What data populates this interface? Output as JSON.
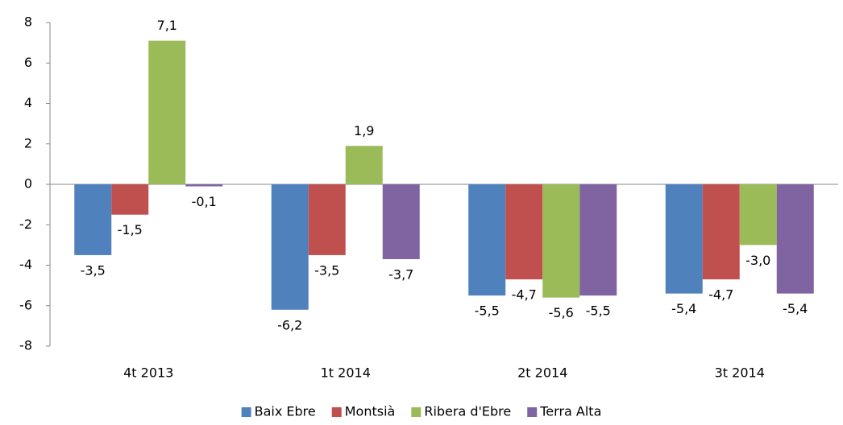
{
  "chart_data": {
    "type": "bar",
    "categories": [
      "4t 2013",
      "1t 2014",
      "2t 2014",
      "3t 2014"
    ],
    "series": [
      {
        "name": "Baix Ebre",
        "color": "#4f81bd",
        "values": [
          -3.5,
          -6.2,
          -5.5,
          -5.4
        ],
        "value_labels": [
          "-3,5",
          "-6,2",
          "-5,5",
          "-5,4"
        ]
      },
      {
        "name": "Montsià",
        "color": "#c0504d",
        "values": [
          -1.5,
          -3.5,
          -4.7,
          -4.7
        ],
        "value_labels": [
          "-1,5",
          "-3,5",
          "-4,7",
          "-4,7"
        ]
      },
      {
        "name": "Ribera d'Ebre",
        "color": "#9bbb59",
        "values": [
          7.1,
          1.9,
          -5.6,
          -3.0
        ],
        "value_labels": [
          "7,1",
          "1,9",
          "-5,6",
          "-3,0"
        ]
      },
      {
        "name": "Terra Alta",
        "color": "#8064a2",
        "values": [
          -0.1,
          -3.7,
          -5.5,
          -5.4
        ],
        "value_labels": [
          "-0,1",
          "-3,7",
          "-5,5",
          "-5,4"
        ]
      }
    ],
    "ylim": [
      -8,
      8
    ],
    "yticks": [
      -8,
      -6,
      -4,
      -2,
      0,
      2,
      4,
      6,
      8
    ],
    "grid": false,
    "legend": "bottom"
  }
}
